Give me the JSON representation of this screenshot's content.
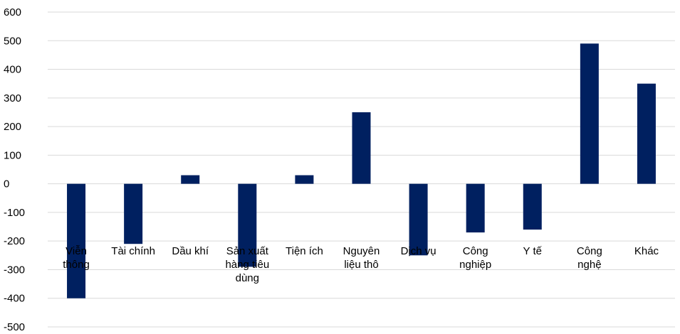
{
  "chart_data": {
    "type": "bar",
    "title": "",
    "xlabel": "",
    "ylabel": "",
    "ylim": [
      -500,
      600
    ],
    "yticks": [
      600,
      500,
      400,
      300,
      200,
      100,
      0,
      -100,
      -200,
      -300,
      -400,
      -500
    ],
    "grid": true,
    "legend": "none",
    "bar_color": "#002060",
    "categories": [
      [
        "Viễn",
        "thông"
      ],
      [
        "Tài chính"
      ],
      [
        "Dầu khí"
      ],
      [
        "Sản xuất",
        "hàng tiêu",
        "dùng"
      ],
      [
        "Tiện ích"
      ],
      [
        "Nguyên",
        "liệu thô"
      ],
      [
        "Dịch vụ"
      ],
      [
        "Công",
        "nghiệp"
      ],
      [
        "Y tế"
      ],
      [
        "Công",
        "nghệ"
      ],
      [
        "Khác"
      ]
    ],
    "values": [
      -400,
      -210,
      30,
      -290,
      30,
      250,
      -250,
      -170,
      -160,
      490,
      350
    ]
  }
}
